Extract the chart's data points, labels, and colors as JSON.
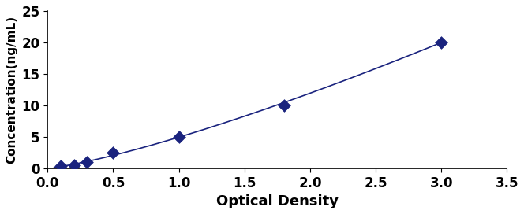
{
  "x_data": [
    0.1,
    0.2,
    0.3,
    0.5,
    1.0,
    1.8,
    3.0
  ],
  "y_data": [
    0.3,
    0.5,
    1.0,
    2.5,
    5.0,
    10.0,
    20.0
  ],
  "line_color": "#1a237e",
  "marker_color": "#1a237e",
  "marker_style": "D",
  "marker_size": 4,
  "line_width": 1.2,
  "xlabel": "Optical Density",
  "ylabel": "Concentration(ng/mL)",
  "xlim": [
    0,
    3.5
  ],
  "ylim": [
    0,
    25
  ],
  "xticks": [
    0,
    0.5,
    1.0,
    1.5,
    2.0,
    2.5,
    3.0,
    3.5
  ],
  "yticks": [
    0,
    5,
    10,
    15,
    20,
    25
  ],
  "xlabel_fontsize": 13,
  "ylabel_fontsize": 11,
  "tick_fontsize": 12,
  "background_color": "#ffffff"
}
